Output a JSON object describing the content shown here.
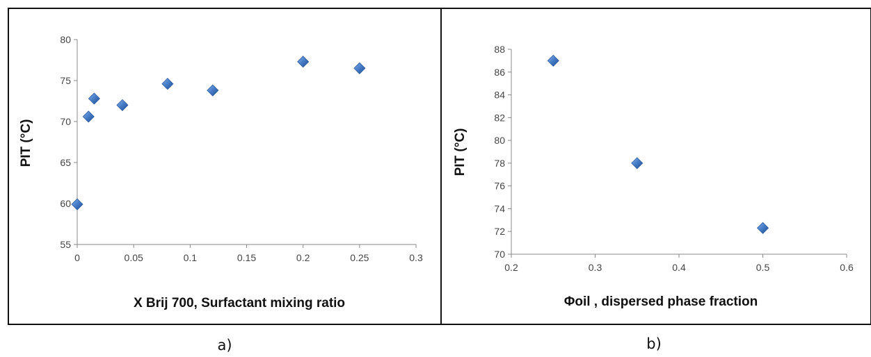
{
  "chart_data": [
    {
      "type": "scatter",
      "panel_label": "a)",
      "xlabel": "X Brij 700, Surfactant mixing ratio",
      "ylabel": "PIT (°C)",
      "xlim": [
        0,
        0.3
      ],
      "ylim": [
        55,
        80
      ],
      "xticks": [
        "0",
        "0.05",
        "0.1",
        "0.15",
        "0.2",
        "0.25",
        "0.3"
      ],
      "yticks": [
        "55",
        "60",
        "65",
        "70",
        "75",
        "80"
      ],
      "grid": false,
      "marker": "diamond",
      "marker_color": "#4a7fc9",
      "points": [
        {
          "x": 0,
          "y": 59.9
        },
        {
          "x": 0.01,
          "y": 70.6
        },
        {
          "x": 0.015,
          "y": 72.8
        },
        {
          "x": 0.04,
          "y": 72.0
        },
        {
          "x": 0.08,
          "y": 74.6
        },
        {
          "x": 0.12,
          "y": 73.8
        },
        {
          "x": 0.2,
          "y": 77.3
        },
        {
          "x": 0.25,
          "y": 76.5
        }
      ]
    },
    {
      "type": "scatter",
      "panel_label": "b)",
      "xlabel": "Φoil , dispersed phase fraction",
      "ylabel": "PIT (°C)",
      "xlim": [
        0.2,
        0.6
      ],
      "ylim": [
        70,
        88
      ],
      "xticks": [
        "0.2",
        "0.3",
        "0.4",
        "0.5",
        "0.6"
      ],
      "yticks": [
        "70",
        "72",
        "74",
        "76",
        "78",
        "80",
        "82",
        "84",
        "86",
        "88"
      ],
      "grid": false,
      "marker": "diamond",
      "marker_color": "#4a7fc9",
      "points": [
        {
          "x": 0.25,
          "y": 87.0
        },
        {
          "x": 0.35,
          "y": 78.0
        },
        {
          "x": 0.5,
          "y": 72.3
        }
      ]
    }
  ]
}
